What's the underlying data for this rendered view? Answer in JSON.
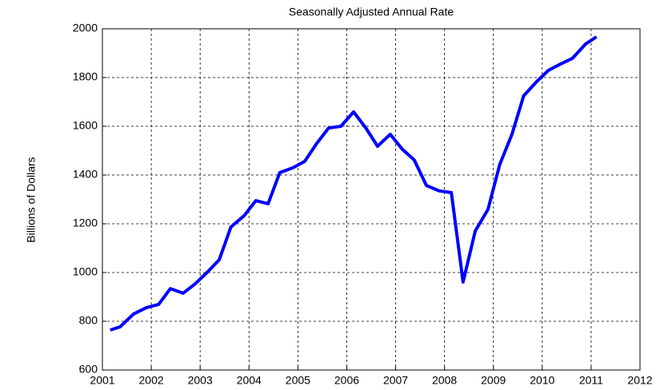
{
  "chart_data": {
    "type": "line",
    "title": "Seasonally Adjusted Annual Rate",
    "ylabel": "Billions of Dollars",
    "x": [
      2001.16,
      2001.36,
      2001.64,
      2001.9,
      2002.15,
      2002.39,
      2002.65,
      2002.9,
      2003.14,
      2003.39,
      2003.63,
      2003.9,
      2004.14,
      2004.39,
      2004.63,
      2004.9,
      2005.14,
      2005.39,
      2005.63,
      2005.88,
      2006.14,
      2006.39,
      2006.63,
      2006.89,
      2007.14,
      2007.38,
      2007.63,
      2007.89,
      2008.14,
      2008.38,
      2008.63,
      2008.89,
      2009.13,
      2009.38,
      2009.62,
      2009.89,
      2010.13,
      2010.38,
      2010.62,
      2010.89,
      2011.11
    ],
    "series": [
      {
        "color": "#0000ff",
        "values": [
          764,
          777,
          830,
          856,
          869,
          934,
          915,
          954,
          1000,
          1052,
          1187,
          1233,
          1295,
          1282,
          1410,
          1430,
          1456,
          1531,
          1593,
          1600,
          1659,
          1593,
          1518,
          1567,
          1505,
          1462,
          1357,
          1335,
          1328,
          961,
          1171,
          1259,
          1443,
          1567,
          1725,
          1784,
          1830,
          1856,
          1879,
          1938,
          1967
        ]
      }
    ],
    "xlim": [
      2001,
      2012
    ],
    "xticks": [
      2001,
      2002,
      2003,
      2004,
      2005,
      2006,
      2007,
      2008,
      2009,
      2010,
      2011,
      2012
    ],
    "ylim": [
      600,
      2000
    ],
    "yticks": [
      600,
      800,
      1000,
      1200,
      1400,
      1600,
      1800,
      2000
    ],
    "grid": true
  }
}
